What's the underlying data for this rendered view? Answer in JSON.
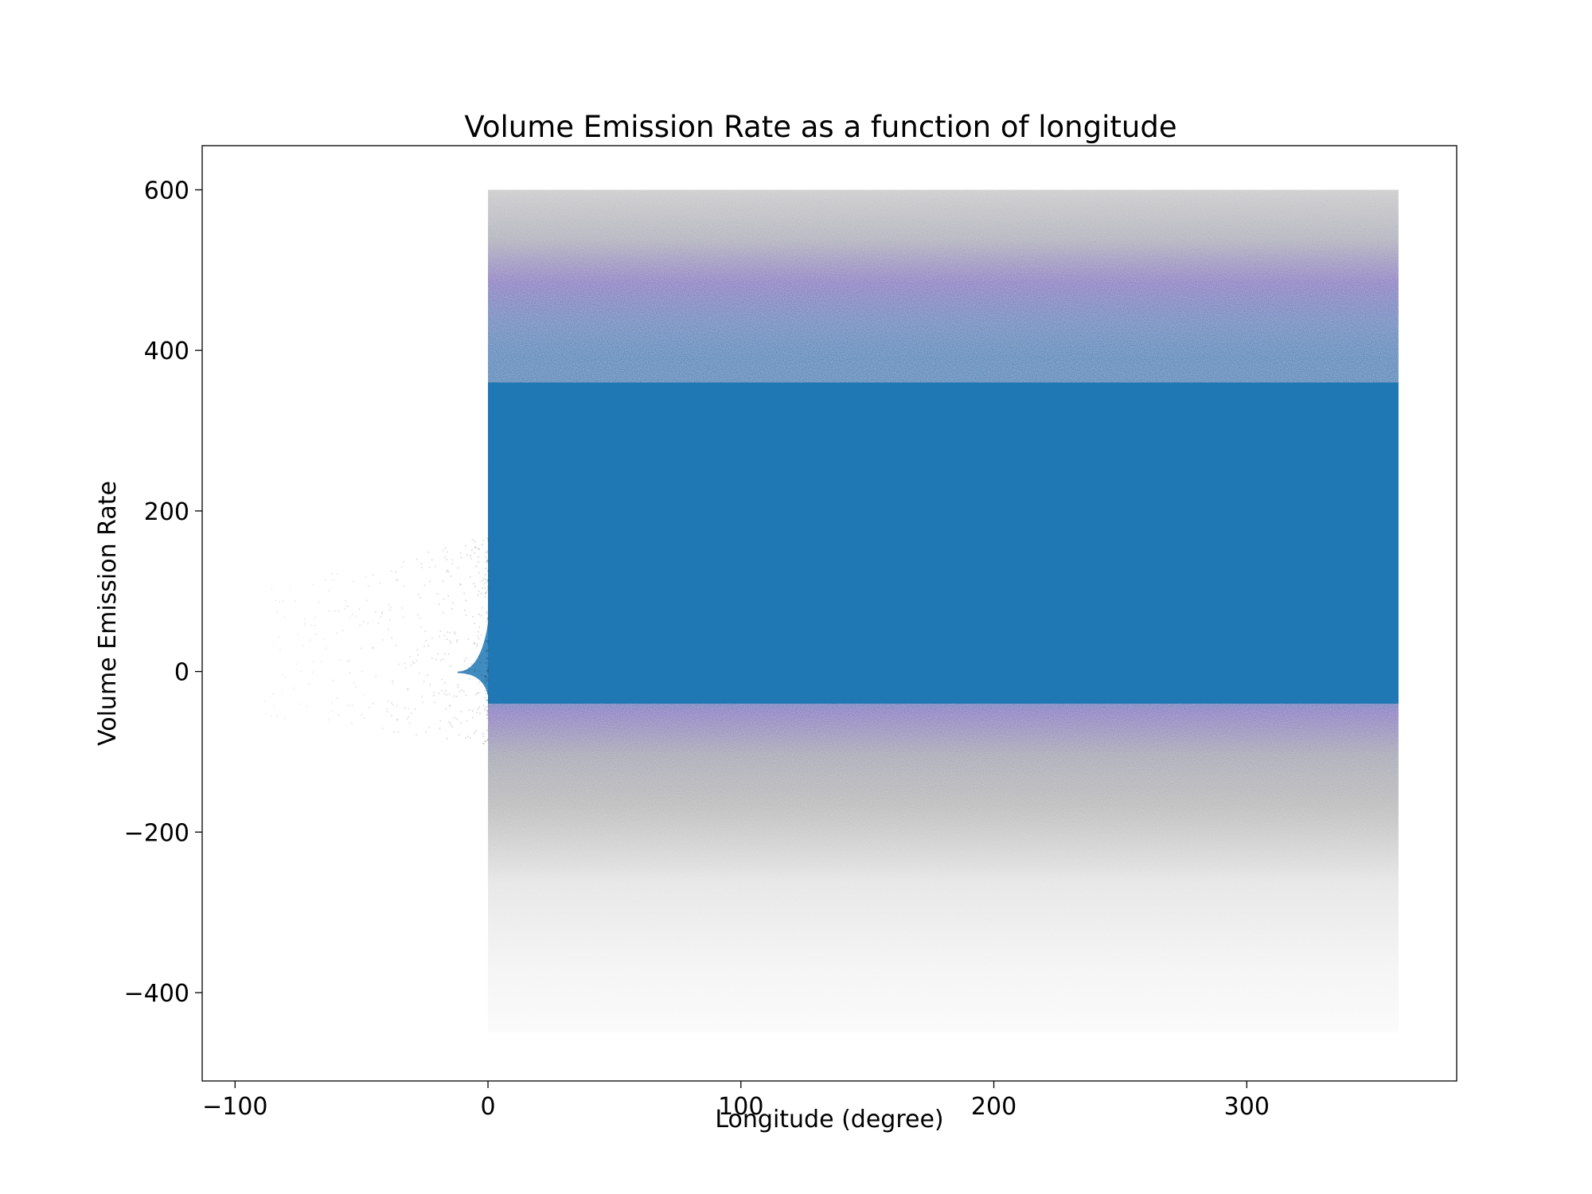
{
  "chart_data": {
    "type": "scatter",
    "title": "Volume Emission Rate as a function of longitude",
    "xlabel": "Longitude (degree)",
    "ylabel": "Volume Emission Rate",
    "xlim": [
      -113,
      383
    ],
    "ylim": [
      -510,
      655
    ],
    "grid": false,
    "legend": "none",
    "x_ticks": [
      -100,
      0,
      100,
      200,
      300
    ],
    "x_tick_labels": [
      "−100",
      "0",
      "100",
      "200",
      "300"
    ],
    "y_ticks": [
      -400,
      -200,
      0,
      200,
      400,
      600
    ],
    "y_tick_labels": [
      "−400",
      "−200",
      "0",
      "200",
      "400",
      "600"
    ],
    "series": [
      {
        "x_range": [
          0,
          360
        ],
        "dense_core": {
          "y_min": -45,
          "y_max": 420
        },
        "outer_extent": {
          "y_min": -450,
          "y_max": 600
        },
        "sparse_tail": {
          "x_range": [
            -90,
            0
          ]
        },
        "color": "#1f77b4"
      }
    ],
    "colors": {
      "core": "#1f77b4",
      "fringe": "#7b6bbf",
      "halo": "#a6a6a6"
    }
  }
}
